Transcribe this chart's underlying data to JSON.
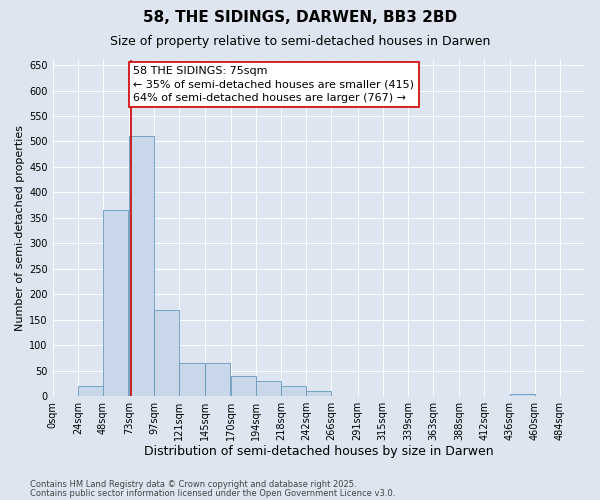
{
  "title1": "58, THE SIDINGS, DARWEN, BB3 2BD",
  "title2": "Size of property relative to semi-detached houses in Darwen",
  "xlabel": "Distribution of semi-detached houses by size in Darwen",
  "ylabel": "Number of semi-detached properties",
  "annotation_title": "58 THE SIDINGS: 75sqm",
  "annotation_line1": "← 35% of semi-detached houses are smaller (415)",
  "annotation_line2": "64% of semi-detached houses are larger (767) →",
  "footer1": "Contains HM Land Registry data © Crown copyright and database right 2025.",
  "footer2": "Contains public sector information licensed under the Open Government Licence v3.0.",
  "bar_left_edges": [
    0,
    24,
    48,
    73,
    97,
    121,
    145,
    170,
    194,
    218,
    242,
    266,
    291,
    315,
    339,
    363,
    388,
    412,
    436,
    460,
    484
  ],
  "bar_heights": [
    1,
    20,
    365,
    510,
    170,
    65,
    65,
    40,
    30,
    20,
    10,
    0,
    0,
    0,
    0,
    0,
    0,
    0,
    4,
    0,
    1
  ],
  "bar_color": "#c8d8ea",
  "bar_edge_color": "#6699bb",
  "vline_color": "#cc0000",
  "vline_x": 75,
  "annotation_bg": "#ffffff",
  "annotation_box_edgecolor": "#cc0000",
  "background_color": "#dde6f0",
  "ylim": [
    0,
    660
  ],
  "yticks": [
    0,
    50,
    100,
    150,
    200,
    250,
    300,
    350,
    400,
    450,
    500,
    550,
    600,
    650
  ],
  "xtick_labels": [
    "0sqm",
    "24sqm",
    "48sqm",
    "73sqm",
    "97sqm",
    "121sqm",
    "145sqm",
    "170sqm",
    "194sqm",
    "218sqm",
    "242sqm",
    "266sqm",
    "291sqm",
    "315sqm",
    "339sqm",
    "363sqm",
    "388sqm",
    "412sqm",
    "436sqm",
    "460sqm",
    "484sqm"
  ],
  "title1_fontsize": 11,
  "title2_fontsize": 9,
  "xlabel_fontsize": 9,
  "ylabel_fontsize": 8,
  "tick_fontsize": 7,
  "annotation_fontsize": 8,
  "footer_fontsize": 6
}
